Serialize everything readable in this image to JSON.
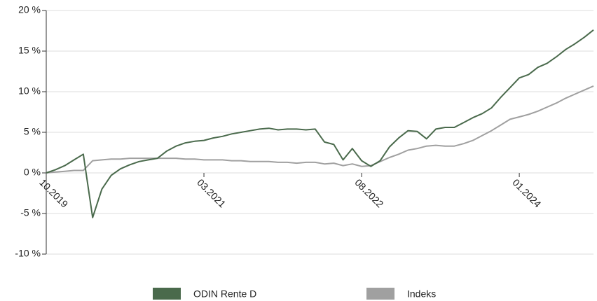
{
  "chart_data": {
    "type": "line",
    "x": [
      "10.2019",
      "11.2019",
      "12.2019",
      "01.2020",
      "02.2020",
      "03.2020",
      "04.2020",
      "05.2020",
      "06.2020",
      "07.2020",
      "08.2020",
      "09.2020",
      "10.2020",
      "11.2020",
      "12.2020",
      "01.2021",
      "02.2021",
      "03.2021",
      "04.2021",
      "05.2021",
      "06.2021",
      "07.2021",
      "08.2021",
      "09.2021",
      "10.2021",
      "11.2021",
      "12.2021",
      "01.2022",
      "02.2022",
      "03.2022",
      "04.2022",
      "05.2022",
      "06.2022",
      "07.2022",
      "08.2022",
      "09.2022",
      "10.2022",
      "11.2022",
      "12.2022",
      "01.2023",
      "02.2023",
      "03.2023",
      "04.2023",
      "05.2023",
      "06.2023",
      "07.2023",
      "08.2023",
      "09.2023",
      "10.2023",
      "11.2023",
      "12.2023",
      "01.2024",
      "02.2024",
      "03.2024",
      "04.2024",
      "05.2024",
      "06.2024",
      "07.2024",
      "08.2024",
      "09.2024"
    ],
    "series": [
      {
        "name": "ODIN Rente D",
        "color": "#4a6a4c",
        "values": [
          0,
          0.4,
          0.9,
          1.6,
          2.3,
          -5.5,
          -2.0,
          -0.3,
          0.5,
          1.0,
          1.4,
          1.6,
          1.8,
          2.7,
          3.3,
          3.7,
          3.9,
          4.0,
          4.3,
          4.5,
          4.8,
          5.0,
          5.2,
          5.4,
          5.5,
          5.3,
          5.4,
          5.4,
          5.3,
          5.4,
          3.8,
          3.5,
          1.6,
          3.0,
          1.5,
          0.8,
          1.5,
          3.2,
          4.3,
          5.2,
          5.1,
          4.2,
          5.4,
          5.6,
          5.6,
          6.2,
          6.8,
          7.3,
          8.0,
          9.3,
          10.5,
          11.7,
          12.1,
          13.0,
          13.5,
          14.3,
          15.2,
          15.9,
          16.7,
          17.6
        ]
      },
      {
        "name": "Indeks",
        "color": "#a0a0a0",
        "values": [
          0,
          0.1,
          0.2,
          0.3,
          0.3,
          1.5,
          1.6,
          1.7,
          1.7,
          1.8,
          1.8,
          1.8,
          1.8,
          1.8,
          1.8,
          1.7,
          1.7,
          1.6,
          1.6,
          1.6,
          1.5,
          1.5,
          1.4,
          1.4,
          1.4,
          1.3,
          1.3,
          1.2,
          1.3,
          1.3,
          1.1,
          1.2,
          0.9,
          1.1,
          0.8,
          0.9,
          1.4,
          1.9,
          2.3,
          2.8,
          3.0,
          3.3,
          3.4,
          3.3,
          3.3,
          3.6,
          4.0,
          4.6,
          5.2,
          5.9,
          6.6,
          6.9,
          7.2,
          7.6,
          8.1,
          8.6,
          9.2,
          9.7,
          10.2,
          10.7
        ]
      }
    ],
    "xticks": [
      "10.2019",
      "03.2021",
      "08.2022",
      "01.2024"
    ],
    "ylim": [
      -10,
      20
    ],
    "yticks": [
      {
        "value": -10,
        "label": "-10 %"
      },
      {
        "value": -5,
        "label": "-5 %"
      },
      {
        "value": 0,
        "label": "0 %"
      },
      {
        "value": 5,
        "label": "5 %"
      },
      {
        "value": 10,
        "label": "10 %"
      },
      {
        "value": 15,
        "label": "15 %"
      },
      {
        "value": 20,
        "label": "20 %"
      }
    ],
    "grid": true
  }
}
